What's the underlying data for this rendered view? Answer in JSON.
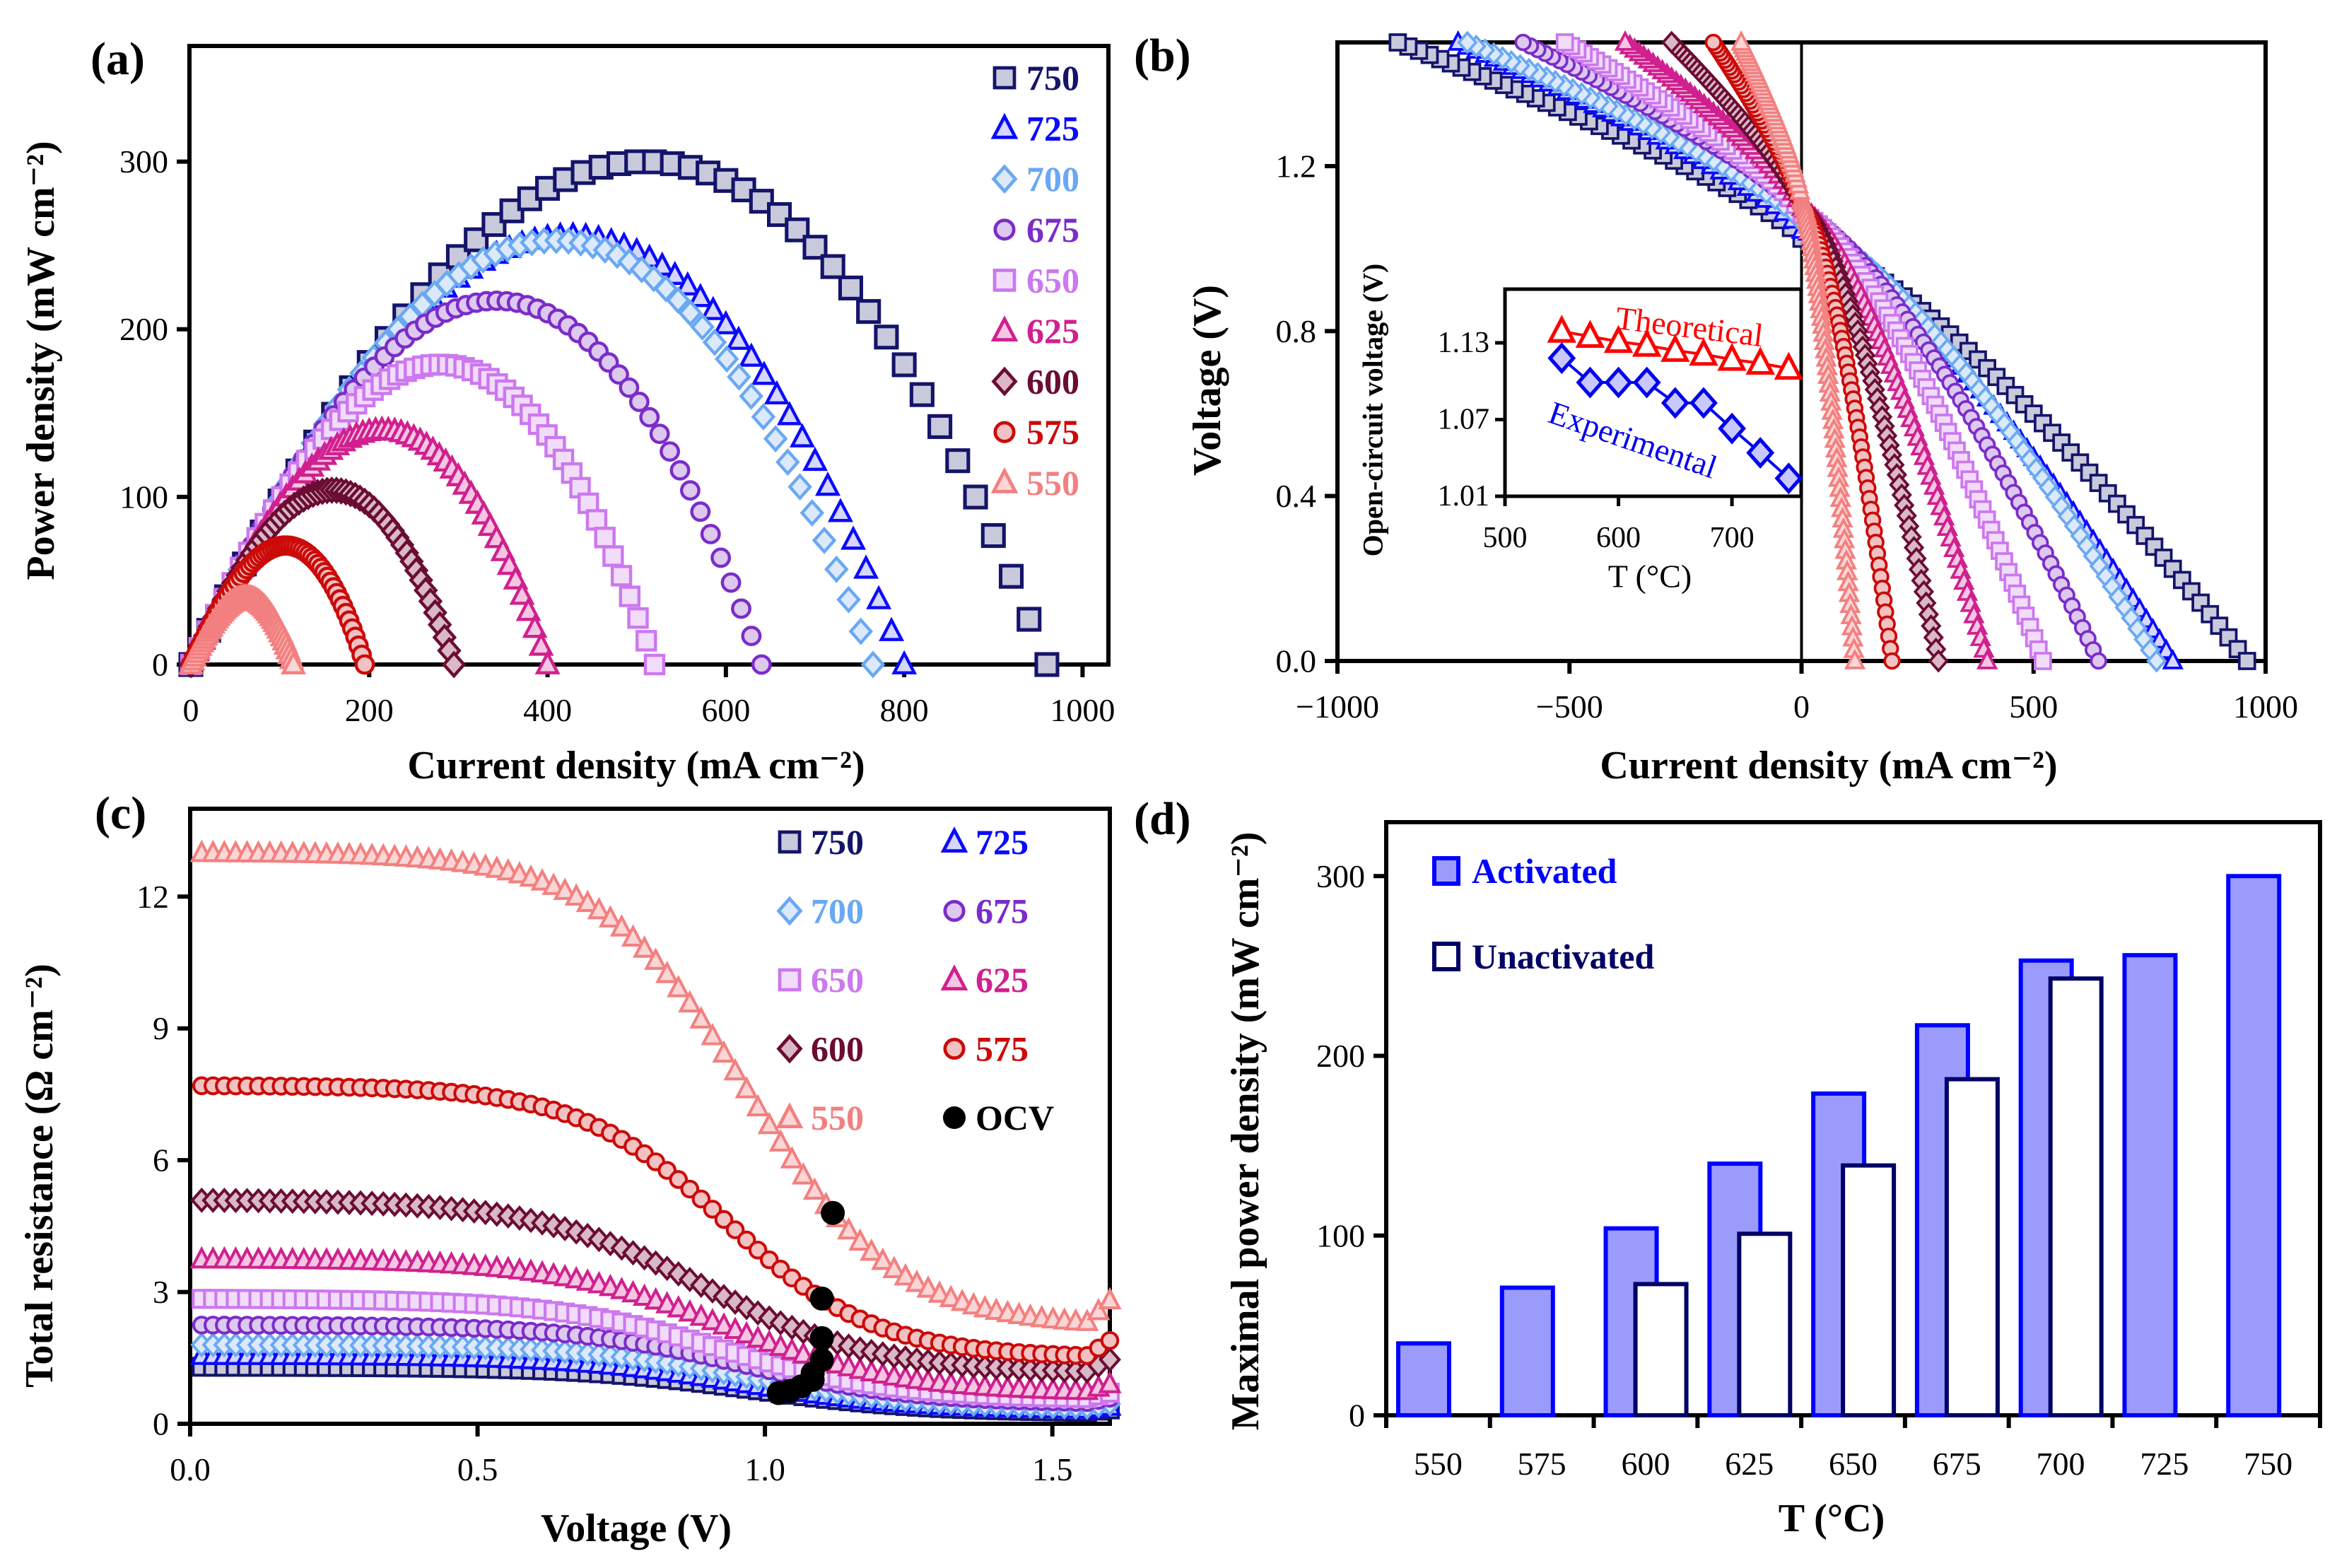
{
  "panel_labels": [
    "(a)",
    "(b)",
    "(c)",
    "(d)"
  ],
  "chart_data": [
    {
      "id": "a",
      "type": "scatter",
      "title": "(a)",
      "xlabel": "Current density (mA cm⁻²)",
      "ylabel": "Power density (mW cm⁻²)",
      "xlim": [
        -1.6,
        1029
      ],
      "ylim": [
        0,
        369
      ],
      "xticks": [
        0,
        200,
        400,
        600,
        800,
        1000
      ],
      "xtick_labels": [
        "0",
        "200",
        "400",
        "600",
        "800",
        "1000"
      ],
      "yticks": [
        0,
        100,
        200,
        300
      ],
      "ytick_labels": [
        "0",
        "100",
        "200",
        "300"
      ],
      "legend_placement": "top-right",
      "series": [
        {
          "name": "750",
          "marker": "square",
          "color": "#14146b",
          "fill": "#c9c9dc",
          "ocv": 1.024,
          "limiting_current": 960,
          "max_power": 300
        },
        {
          "name": "725",
          "marker": "triangle",
          "color": "#0a0aff",
          "fill": "#d6d6ff",
          "ocv": 1.044,
          "limiting_current": 800,
          "max_power": 256
        },
        {
          "name": "700",
          "marker": "diamond",
          "color": "#6aa8f2",
          "fill": "#dbe9fb",
          "ocv": 1.063,
          "limiting_current": 765,
          "max_power": 253
        },
        {
          "name": "675",
          "marker": "circle",
          "color": "#7b2cc9",
          "fill": "#ddc8f0",
          "ocv": 1.083,
          "limiting_current": 640,
          "max_power": 217
        },
        {
          "name": "650",
          "marker": "square",
          "color": "#cc78ee",
          "fill": "#f1dcfa",
          "ocv": 1.083,
          "limiting_current": 520,
          "max_power": 179
        },
        {
          "name": "625",
          "marker": "triangle",
          "color": "#d0208f",
          "fill": "#f4c6e2",
          "ocv": 1.099,
          "limiting_current": 400,
          "max_power": 140
        },
        {
          "name": "600",
          "marker": "diamond",
          "color": "#6b0c33",
          "fill": "#d8b9c5",
          "ocv": 1.099,
          "limiting_current": 295,
          "max_power": 104
        },
        {
          "name": "575",
          "marker": "circle",
          "color": "#cc0a0a",
          "fill": "#f2c2c2",
          "ocv": 1.099,
          "limiting_current": 195,
          "max_power": 71
        },
        {
          "name": "550",
          "marker": "triangle",
          "color": "#f38080",
          "fill": "#fbd6d6",
          "ocv": 1.118,
          "limiting_current": 115,
          "max_power": 40
        }
      ]
    },
    {
      "id": "b",
      "type": "scatter",
      "title": "(b)",
      "xlabel": "Current density (mA cm⁻²)",
      "ylabel": "Voltage (V)",
      "xlim": [
        -1000,
        1000
      ],
      "ylim": [
        0,
        1.5
      ],
      "xticks": [
        -1000,
        -500,
        0,
        500,
        1000
      ],
      "xtick_labels": [
        "−1000",
        "−500",
        "0",
        "500",
        "1000"
      ],
      "yticks": [
        0,
        0.4,
        0.8,
        1.2
      ],
      "ytick_labels": [
        "0.0",
        "0.4",
        "0.8",
        "1.2"
      ],
      "series_note_same_as": "a",
      "electrolysis_current_at_1_5V": {
        "750": -870,
        "725": -740,
        "700": -720,
        "675": -600,
        "650": -510,
        "625": -380,
        "600": -280,
        "575": -190,
        "550": -130
      },
      "inset": {
        "type": "line",
        "xlabel": "T (°C)",
        "ylabel": "Open-circuit voltage (V)",
        "xlim": [
          500,
          761
        ],
        "ylim": [
          1.01,
          1.172
        ],
        "xticks": [
          500,
          600,
          700
        ],
        "xtick_labels": [
          "500",
          "600",
          "700"
        ],
        "yticks": [
          1.01,
          1.07,
          1.13
        ],
        "ytick_labels": [
          "1.01",
          "1.07",
          "1.13"
        ],
        "x": [
          550,
          575,
          600,
          625,
          650,
          675,
          700,
          725,
          750
        ],
        "series": [
          {
            "name": "Theoretical",
            "marker": "triangle",
            "color": "#ff0000",
            "fill": "#ffffff",
            "values": [
              1.139,
              1.135,
              1.131,
              1.128,
              1.124,
              1.121,
              1.117,
              1.114,
              1.11
            ]
          },
          {
            "name": "Experimental",
            "marker": "diamond",
            "color": "#0000ee",
            "fill": "#c8c8ff",
            "values": [
              1.118,
              1.099,
              1.099,
              1.099,
              1.083,
              1.083,
              1.063,
              1.044,
              1.024
            ]
          }
        ]
      }
    },
    {
      "id": "c",
      "type": "scatter",
      "title": "(c)",
      "xlabel": "Voltage (V)",
      "ylabel": "Total resistance (Ω cm⁻²)",
      "xlim": [
        0,
        1.6
      ],
      "ylim": [
        0,
        14
      ],
      "xticks": [
        0,
        0.5,
        1.0,
        1.5
      ],
      "xtick_labels": [
        "0.0",
        "0.5",
        "1.0",
        "1.5"
      ],
      "yticks": [
        0,
        3,
        6,
        9,
        12
      ],
      "ytick_labels": [
        "0",
        "3",
        "6",
        "9",
        "12"
      ],
      "legend_placement": "top-right",
      "resistance_plateau_low_voltage": {
        "750": 1.3,
        "725": 1.55,
        "700": 1.8,
        "675": 2.25,
        "650": 2.85,
        "625": 3.75,
        "600": 5.1,
        "575": 7.7,
        "550": 13.0
      },
      "resistance_at_1_6V": {
        "750": 0.25,
        "725": 0.3,
        "700": 0.35,
        "675": 0.45,
        "650": 0.55,
        "625": 0.7,
        "600": 1.15,
        "575": 1.5,
        "550": 2.2
      },
      "ocv_series": {
        "name": "OCV",
        "color": "#000000",
        "points": [
          {
            "temp": "750",
            "v": 1.024,
            "r": 0.7
          },
          {
            "temp": "725",
            "v": 1.044,
            "r": 0.75
          },
          {
            "temp": "700",
            "v": 1.063,
            "r": 0.85
          },
          {
            "temp": "675",
            "v": 1.083,
            "r": 1.0
          },
          {
            "temp": "650",
            "v": 1.083,
            "r": 1.15
          },
          {
            "temp": "625",
            "v": 1.099,
            "r": 1.45
          },
          {
            "temp": "600",
            "v": 1.099,
            "r": 1.95
          },
          {
            "temp": "575",
            "v": 1.099,
            "r": 2.85
          },
          {
            "temp": "550",
            "v": 1.118,
            "r": 4.8
          }
        ]
      }
    },
    {
      "id": "d",
      "type": "bar",
      "title": "(d)",
      "xlabel": "T (°C)",
      "ylabel": "Maximal power density (mW cm⁻²)",
      "ylim": [
        0,
        330
      ],
      "yticks": [
        0,
        100,
        200,
        300
      ],
      "ytick_labels": [
        "0",
        "100",
        "200",
        "300"
      ],
      "categories": [
        "550",
        "575",
        "600",
        "625",
        "650",
        "675",
        "700",
        "725",
        "750"
      ],
      "legend_placement": "top-left",
      "series": [
        {
          "name": "Activated",
          "color": "#0000ff",
          "fill": "#9b9bfb",
          "values": [
            40,
            71,
            104,
            140,
            179,
            217,
            253,
            256,
            300
          ]
        },
        {
          "name": "Unactivated",
          "color": "#000066",
          "fill": "#ffffff",
          "values": [
            null,
            null,
            73,
            101,
            139,
            187,
            243,
            null,
            null
          ]
        }
      ]
    }
  ]
}
